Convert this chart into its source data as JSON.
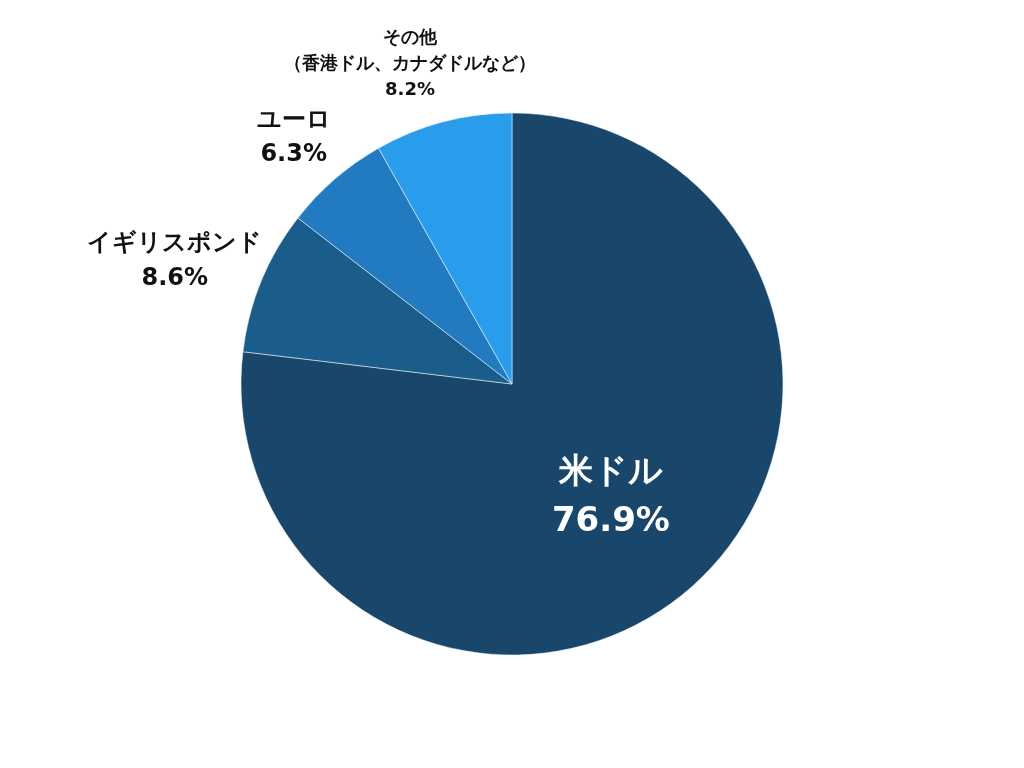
{
  "chart_data": {
    "type": "pie",
    "categories": [
      "米ドル",
      "イギリスポンド",
      "ユーロ",
      "その他（香港ドル、カナダドルなど）"
    ],
    "value_labels": [
      "76.9%",
      "8.6%",
      "6.3%",
      "8.2%"
    ],
    "values": [
      76.9,
      8.6,
      6.3,
      8.2
    ],
    "colors": [
      "#19466b",
      "#1a5d8b",
      "#227ac1",
      "#299cec"
    ]
  }
}
